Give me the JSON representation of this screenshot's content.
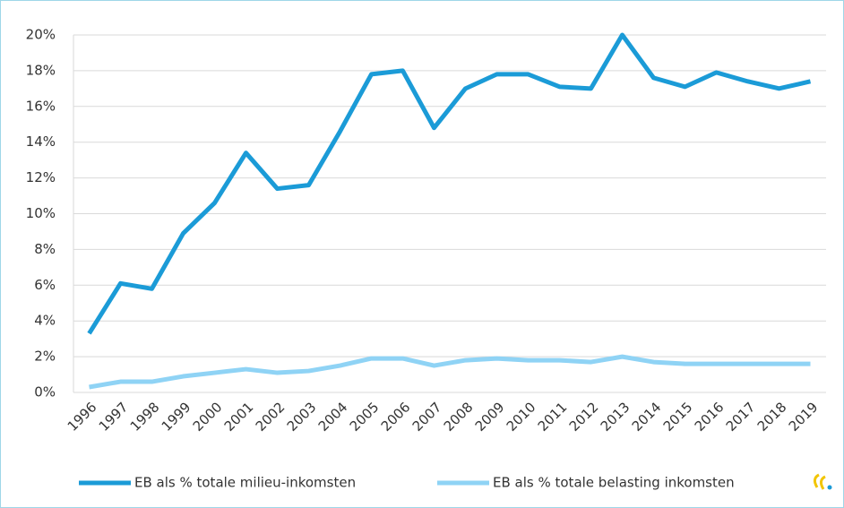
{
  "chart_data": {
    "type": "line",
    "categories": [
      "1996",
      "1997",
      "1998",
      "1999",
      "2000",
      "2001",
      "2002",
      "2003",
      "2004",
      "2005",
      "2006",
      "2007",
      "2008",
      "2009",
      "2010",
      "2011",
      "2012",
      "2013",
      "2014",
      "2015",
      "2016",
      "2017",
      "2018",
      "2019"
    ],
    "series": [
      {
        "name": "EB als % totale milieu-inkomsten",
        "color": "#1b9bd7",
        "values": [
          3.3,
          6.1,
          5.8,
          8.9,
          10.6,
          13.4,
          11.4,
          11.6,
          14.6,
          17.8,
          18.0,
          14.8,
          17.0,
          17.8,
          17.8,
          17.1,
          17.0,
          20.0,
          17.6,
          17.1,
          17.9,
          17.4,
          17.0,
          17.4
        ]
      },
      {
        "name": "EB als % totale belasting inkomsten",
        "color": "#8fd3f5",
        "values": [
          0.3,
          0.6,
          0.6,
          0.9,
          1.1,
          1.3,
          1.1,
          1.2,
          1.5,
          1.9,
          1.9,
          1.5,
          1.8,
          1.9,
          1.8,
          1.8,
          1.7,
          2.0,
          1.7,
          1.6,
          1.6,
          1.6,
          1.6,
          1.6
        ]
      }
    ],
    "ylim": [
      0,
      20
    ],
    "yticks": [
      {
        "value": 0,
        "label": "0%"
      },
      {
        "value": 2,
        "label": "2%"
      },
      {
        "value": 4,
        "label": "4%"
      },
      {
        "value": 6,
        "label": "6%"
      },
      {
        "value": 8,
        "label": "8%"
      },
      {
        "value": 10,
        "label": "10%"
      },
      {
        "value": 12,
        "label": "12%"
      },
      {
        "value": 14,
        "label": "14%"
      },
      {
        "value": 16,
        "label": "16%"
      },
      {
        "value": 18,
        "label": "18%"
      },
      {
        "value": 20,
        "label": "20%"
      }
    ],
    "grid": true,
    "legend": "bottom"
  }
}
